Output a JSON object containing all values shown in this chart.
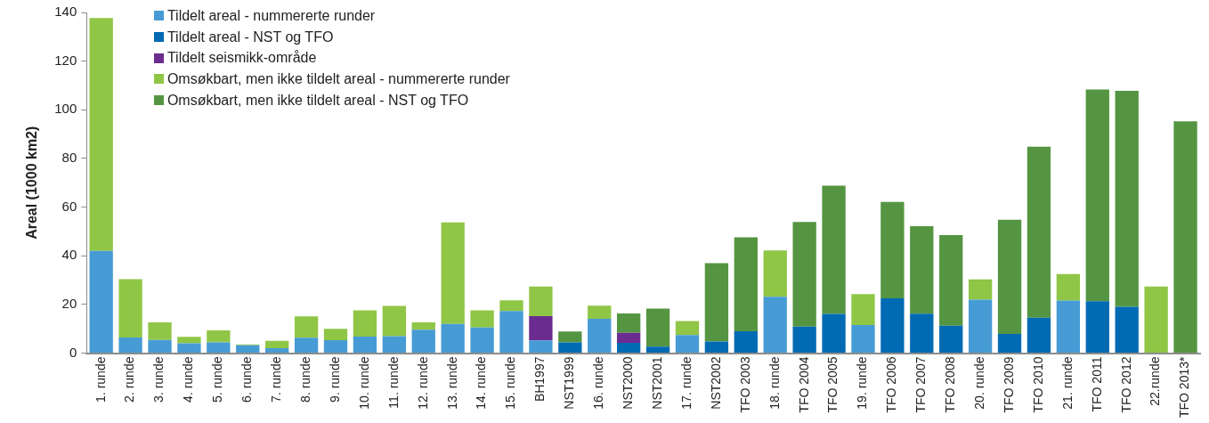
{
  "chart_data": {
    "type": "bar",
    "stacked": true,
    "ylabel": "Areal (1000 km2)",
    "categories": [
      "1. runde",
      "2. runde",
      "3. runde",
      "4. runde",
      "5. runde",
      "6. runde",
      "7. runde",
      "8. runde",
      "9. runde",
      "10. runde",
      "11. runde",
      "12. runde",
      "13. runde",
      "14. runde",
      "15. runde",
      "BH1997",
      "NST1999",
      "16. runde",
      "NST2000",
      "NST2001",
      "17. runde",
      "NST2002",
      "TFO 2003",
      "18. runde",
      "TFO 2004",
      "TFO 2005",
      "19. runde",
      "TFO 2006",
      "TFO 2007",
      "TFO 2008",
      "20. runde",
      "TFO 2009",
      "TFO 2010",
      "21. runde",
      "TFO 2011",
      "TFO 2012",
      "22.runde",
      "TFO 2013*"
    ],
    "series": [
      {
        "name": "Tildelt areal - nummererte runder",
        "color": "#479bd5",
        "values": [
          42,
          6.4,
          5.4,
          4.0,
          4.4,
          3.2,
          2.0,
          6.3,
          5.3,
          6.8,
          7.0,
          9.6,
          12.0,
          10.5,
          17.3,
          5.2,
          null,
          14.1,
          null,
          null,
          7.4,
          null,
          null,
          23.2,
          null,
          null,
          11.5,
          null,
          null,
          null,
          22.0,
          null,
          null,
          21.6,
          null,
          null,
          null,
          null
        ]
      },
      {
        "name": "Tildelt areal - NST og TFO",
        "color": "#006ab3",
        "values": [
          null,
          null,
          null,
          null,
          null,
          null,
          null,
          null,
          null,
          null,
          null,
          null,
          null,
          null,
          null,
          null,
          4.4,
          null,
          4.2,
          2.7,
          null,
          4.8,
          9.0,
          null,
          10.9,
          16.1,
          null,
          22.5,
          16.2,
          11.3,
          null,
          7.9,
          14.6,
          null,
          21.3,
          19.0,
          null,
          null
        ]
      },
      {
        "name": "Tildelt seismikk-område",
        "color": "#6b2c90",
        "values": [
          null,
          null,
          null,
          null,
          null,
          null,
          null,
          null,
          null,
          null,
          null,
          null,
          null,
          null,
          null,
          10.0,
          null,
          null,
          4.1,
          null,
          null,
          null,
          null,
          null,
          null,
          null,
          null,
          null,
          null,
          null,
          null,
          null,
          null,
          null,
          null,
          null,
          null,
          null
        ]
      },
      {
        "name": "Omsøkbart, men ikke tildelt areal - nummererte runder",
        "color": "#8fc646",
        "values": [
          95.7,
          24.0,
          7.2,
          2.7,
          4.9,
          0.4,
          3.0,
          8.8,
          4.7,
          10.8,
          12.4,
          3.0,
          41.7,
          7.1,
          4.4,
          12.2,
          null,
          5.4,
          null,
          null,
          5.8,
          null,
          null,
          19.0,
          null,
          null,
          12.8,
          null,
          null,
          null,
          8.3,
          null,
          null,
          10.9,
          null,
          null,
          27.4,
          null
        ]
      },
      {
        "name": "Omsøkbart, men ikke tildelt areal - NST og TFO",
        "color": "#559542",
        "values": [
          null,
          null,
          null,
          null,
          null,
          null,
          null,
          null,
          null,
          null,
          null,
          null,
          null,
          null,
          null,
          null,
          4.5,
          null,
          8.0,
          15.6,
          null,
          32.2,
          38.6,
          null,
          43.0,
          52.7,
          null,
          39.6,
          36.0,
          37.2,
          null,
          46.9,
          70.2,
          null,
          87.0,
          88.8,
          null,
          95.3
        ]
      }
    ],
    "ylim": [
      0,
      140
    ],
    "yticks": [
      0,
      20,
      40,
      60,
      80,
      100,
      120,
      140
    ],
    "grid": false,
    "legend": "top left"
  }
}
